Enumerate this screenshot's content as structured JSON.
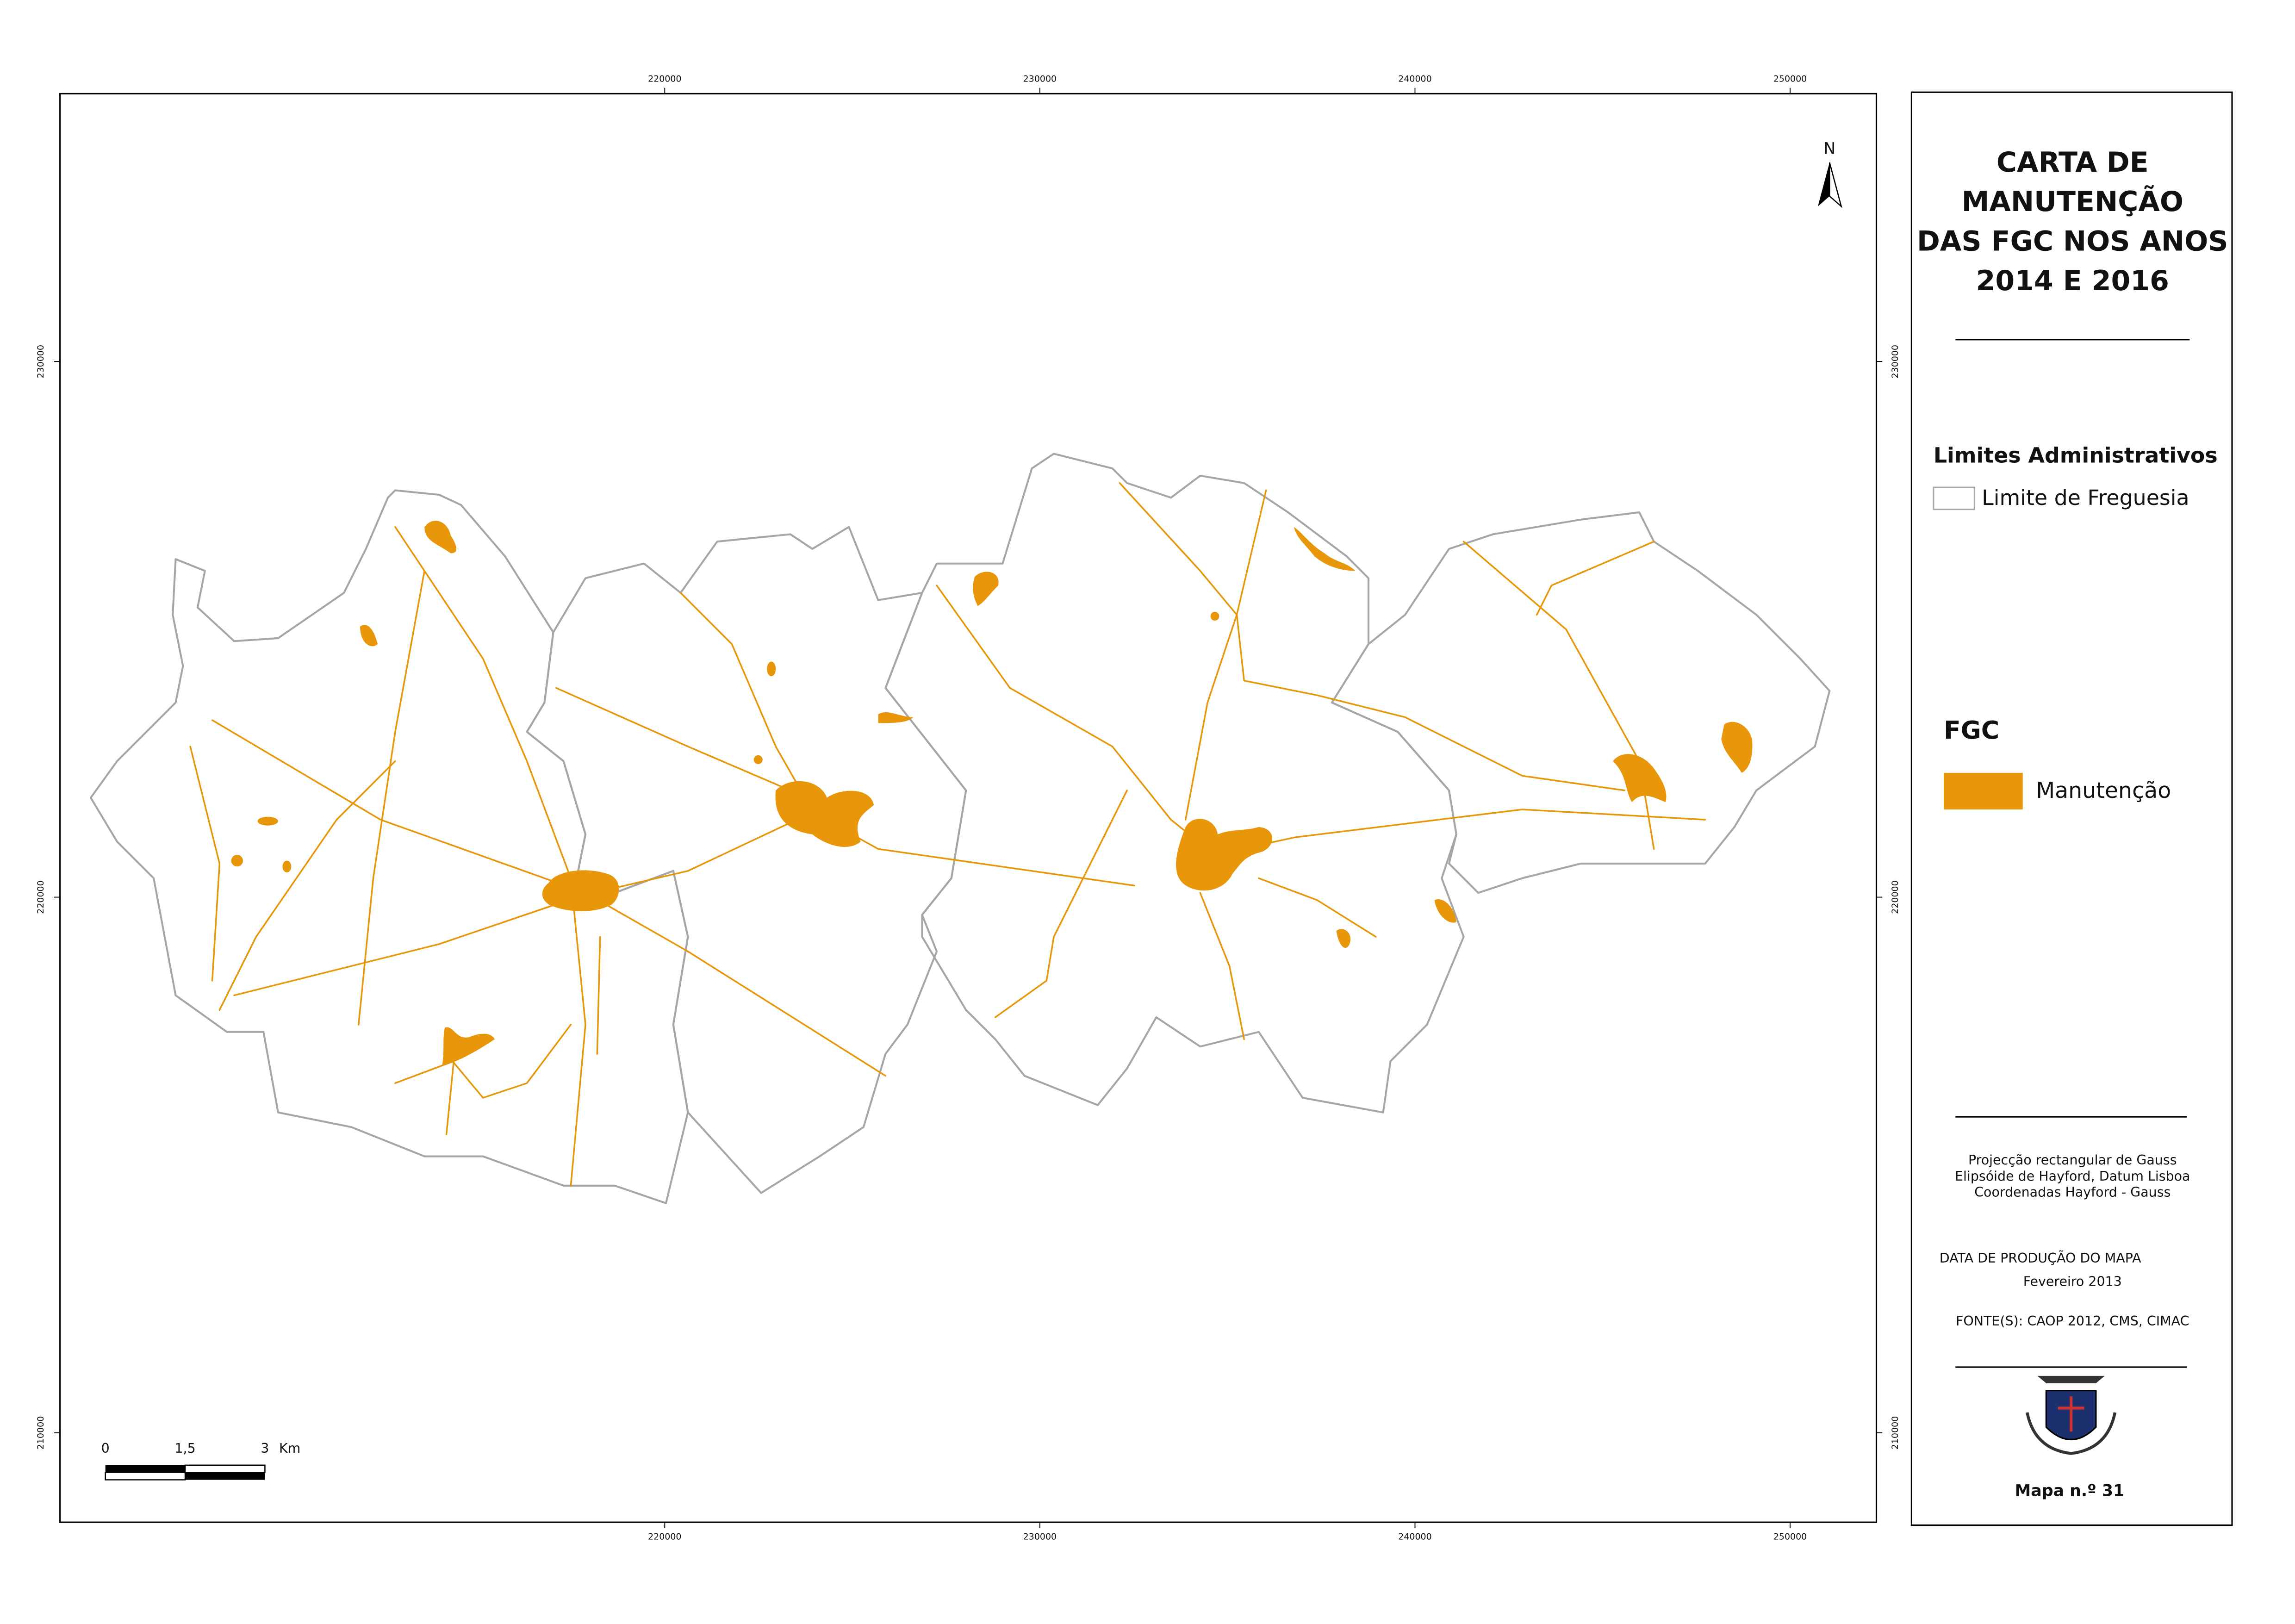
{
  "map_frame": {
    "xlim": [
      203880,
      252300
    ],
    "ylim": [
      208330,
      235000
    ],
    "x_ticks": [
      220000,
      230000,
      240000,
      250000
    ],
    "y_ticks": [
      230000,
      220000,
      210000
    ]
  },
  "north_arrow": "N",
  "scale_bar": {
    "labels": [
      "0",
      "1,5",
      "3"
    ],
    "unit": "Km"
  },
  "panel": {
    "title": [
      "CARTA DE",
      "MANUTENÇÃO",
      "DAS FGC NOS ANOS",
      "2014 E 2016"
    ],
    "legend": [
      {
        "heading": "Limites Administrativos",
        "items": [
          {
            "label": "Limite de Freguesia",
            "fill": "#ffffff",
            "stroke": "#a6a6a6"
          }
        ]
      },
      {
        "heading": "FGC",
        "items": [
          {
            "label": "Manutenção",
            "fill": "#e8960a"
          }
        ]
      }
    ],
    "projection": [
      "Projecção rectangular de Gauss",
      "Elipsóide de Hayford, Datum Lisboa",
      "Coordenadas Hayford - Gauss"
    ],
    "production": [
      "DATA DE PRODUÇÃO DO MAPA",
      "Fevereiro 2013"
    ],
    "sources": "FONTE(S): CAOP 2012, CMS, CIMAC",
    "map_number": "Mapa n.º 31"
  }
}
